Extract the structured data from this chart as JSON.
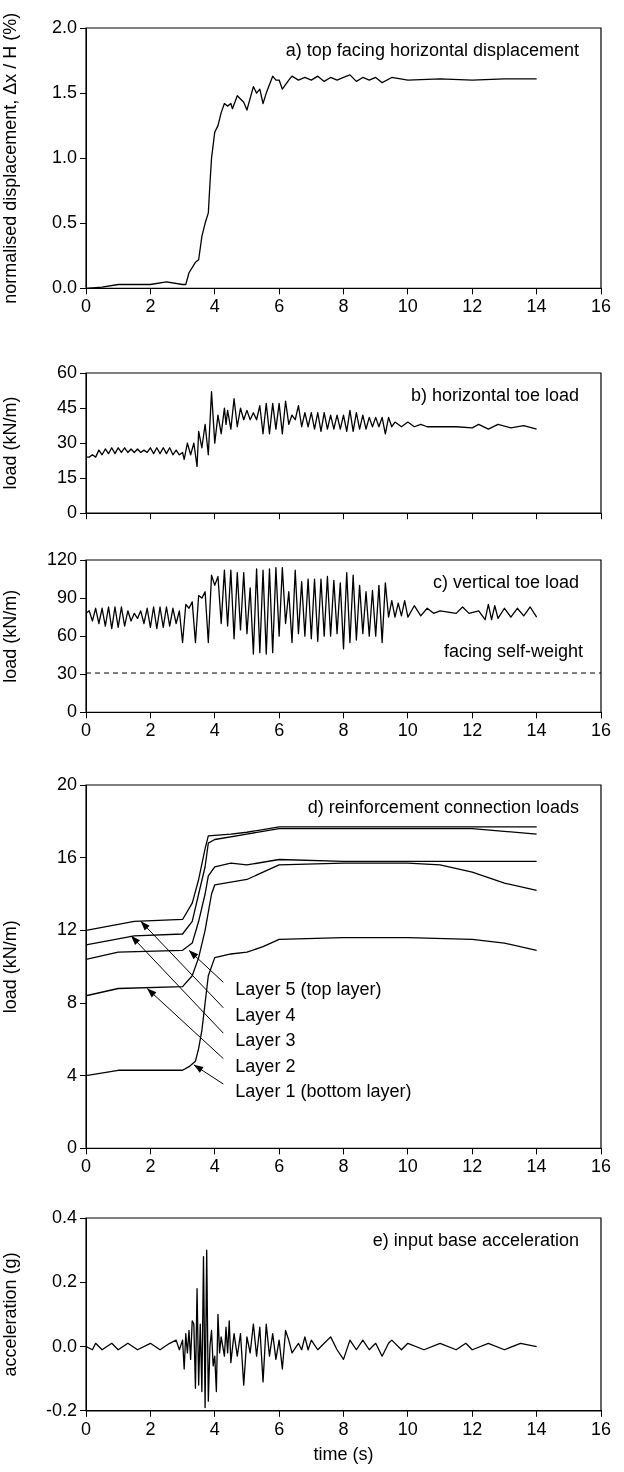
{
  "chart_data": [
    {
      "type": "line",
      "title": "a) top facing horizontal displacement",
      "ylabel": "normalised displacement, Δx / H (%)",
      "xlim": [
        0,
        16
      ],
      "xticks": [
        0,
        2,
        4,
        6,
        8,
        10,
        12,
        14,
        16
      ],
      "ylim": [
        0,
        2
      ],
      "yticks": [
        {
          "value": 0,
          "label": "0.0"
        },
        {
          "value": 0.5,
          "label": "0.5"
        },
        {
          "value": 1,
          "label": "1.0"
        },
        {
          "value": 1.5,
          "label": "1.5"
        },
        {
          "value": 2,
          "label": "2.0"
        }
      ],
      "legend": false,
      "grid": false,
      "series": [
        {
          "color": "#000000",
          "x": [
            0,
            0.5,
            1,
            1.5,
            2,
            2.5,
            3,
            3.1,
            3.2,
            3.4,
            3.5,
            3.6,
            3.7,
            3.8,
            3.85,
            3.9,
            4,
            4.1,
            4.2,
            4.3,
            4.4,
            4.5,
            4.55,
            4.7,
            4.9,
            5,
            5.2,
            5.3,
            5.4,
            5.5,
            5.6,
            5.8,
            5.9,
            6,
            6.1,
            6.3,
            6.4,
            6.6,
            6.8,
            7,
            7.2,
            7.4,
            7.6,
            7.8,
            8,
            8.2,
            8.4,
            8.6,
            8.8,
            9,
            9.2,
            9.5,
            10,
            11,
            12,
            13,
            14
          ],
          "values": [
            0,
            0.01,
            0.03,
            0.03,
            0.03,
            0.05,
            0.03,
            0.03,
            0.12,
            0.2,
            0.22,
            0.4,
            0.5,
            0.58,
            0.8,
            1,
            1.2,
            1.25,
            1.35,
            1.42,
            1.4,
            1.42,
            1.38,
            1.48,
            1.43,
            1.37,
            1.55,
            1.5,
            1.53,
            1.42,
            1.5,
            1.63,
            1.6,
            1.6,
            1.53,
            1.6,
            1.63,
            1.6,
            1.62,
            1.6,
            1.63,
            1.59,
            1.62,
            1.6,
            1.62,
            1.64,
            1.59,
            1.62,
            1.6,
            1.62,
            1.58,
            1.62,
            1.6,
            1.61,
            1.6,
            1.61,
            1.61
          ]
        }
      ]
    },
    {
      "type": "line",
      "title": "b) horizontal toe load",
      "ylabel": "load (kN/m)",
      "xlim": [
        0,
        16
      ],
      "xticks": [
        0,
        2,
        4,
        6,
        8,
        10,
        12,
        14,
        16
      ],
      "ylim": [
        0,
        60
      ],
      "yticks": [
        0,
        15,
        30,
        45,
        60
      ],
      "tick_labels": "y",
      "legend": false,
      "grid": false,
      "series": [
        {
          "color": "#000000",
          "x": [
            0,
            0.1,
            0.2,
            0.3,
            0.4,
            0.5,
            0.6,
            0.7,
            0.8,
            0.9,
            1,
            1.1,
            1.2,
            1.3,
            1.4,
            1.5,
            1.6,
            1.7,
            1.8,
            1.9,
            2,
            2.1,
            2.2,
            2.3,
            2.4,
            2.5,
            2.6,
            2.7,
            2.8,
            2.9,
            3,
            3.05,
            3.15,
            3.25,
            3.35,
            3.45,
            3.5,
            3.6,
            3.7,
            3.8,
            3.9,
            4,
            4.1,
            4.2,
            4.3,
            4.35,
            4.4,
            4.5,
            4.6,
            4.7,
            4.8,
            4.9,
            5,
            5.1,
            5.2,
            5.3,
            5.4,
            5.5,
            5.6,
            5.7,
            5.8,
            5.9,
            6,
            6.1,
            6.2,
            6.3,
            6.4,
            6.5,
            6.6,
            6.7,
            6.8,
            6.9,
            7,
            7.1,
            7.2,
            7.3,
            7.4,
            7.5,
            7.6,
            7.7,
            7.8,
            7.9,
            8,
            8.1,
            8.2,
            8.3,
            8.4,
            8.5,
            8.6,
            8.7,
            8.8,
            8.9,
            9,
            9.1,
            9.2,
            9.3,
            9.4,
            9.5,
            9.6,
            9.8,
            10,
            10.2,
            10.4,
            10.6,
            11,
            11.5,
            12,
            12.2,
            12.5,
            12.8,
            13.2,
            13.6,
            14
          ],
          "values": [
            24,
            24,
            25,
            24,
            27,
            25,
            27.5,
            25.5,
            28,
            25.5,
            28,
            26,
            28,
            26,
            27.5,
            26,
            27.5,
            26,
            27,
            26,
            28,
            25.5,
            28,
            25.5,
            28,
            25.5,
            28,
            25,
            27,
            25,
            26,
            23,
            30,
            25,
            30,
            20,
            35,
            28,
            38,
            25,
            52,
            30,
            42,
            34,
            45,
            38,
            44,
            36,
            49,
            37,
            45,
            40,
            44,
            40,
            43,
            40,
            46,
            34,
            47,
            34,
            47,
            36,
            47,
            34,
            48,
            38,
            42,
            40,
            46,
            37,
            43,
            37,
            43,
            36,
            43,
            35,
            43,
            36,
            42,
            36,
            42,
            36,
            42,
            35,
            44,
            35,
            43,
            36,
            42,
            36,
            41,
            37,
            41,
            37,
            41,
            34,
            41,
            37,
            39,
            37,
            39,
            37,
            38,
            37,
            37,
            37,
            36.5,
            38,
            36,
            38,
            36.5,
            37.5,
            36
          ]
        }
      ]
    },
    {
      "type": "line",
      "title": "c) vertical toe load",
      "ylabel": "load (kN/m)",
      "xlim": [
        0,
        16
      ],
      "xticks": [
        0,
        2,
        4,
        6,
        8,
        10,
        12,
        14,
        16
      ],
      "ylim": [
        0,
        120
      ],
      "yticks": [
        0,
        30,
        60,
        90,
        120
      ],
      "legend": false,
      "grid": false,
      "ref_lines": [
        {
          "axis": "y",
          "value": 31,
          "label": "facing self-weight",
          "line_style": "dashed",
          "color": "#000000"
        }
      ],
      "series": [
        {
          "color": "#000000",
          "x": [
            0,
            0.1,
            0.2,
            0.3,
            0.4,
            0.5,
            0.6,
            0.7,
            0.8,
            0.9,
            1,
            1.1,
            1.2,
            1.3,
            1.4,
            1.5,
            1.6,
            1.7,
            1.8,
            1.9,
            2,
            2.1,
            2.2,
            2.3,
            2.4,
            2.5,
            2.6,
            2.7,
            2.8,
            2.9,
            3,
            3.1,
            3.2,
            3.3,
            3.4,
            3.5,
            3.6,
            3.7,
            3.8,
            3.9,
            4,
            4.1,
            4.2,
            4.3,
            4.4,
            4.5,
            4.6,
            4.7,
            4.8,
            4.9,
            5,
            5.1,
            5.2,
            5.3,
            5.4,
            5.5,
            5.6,
            5.7,
            5.8,
            5.9,
            6,
            6.1,
            6.2,
            6.3,
            6.4,
            6.5,
            6.6,
            6.7,
            6.8,
            6.9,
            7,
            7.1,
            7.2,
            7.3,
            7.4,
            7.5,
            7.6,
            7.7,
            7.8,
            7.9,
            8,
            8.1,
            8.2,
            8.3,
            8.4,
            8.5,
            8.6,
            8.7,
            8.8,
            8.9,
            9,
            9.1,
            9.2,
            9.3,
            9.4,
            9.5,
            9.6,
            9.7,
            9.8,
            9.9,
            10,
            10.2,
            10.4,
            10.6,
            10.8,
            11,
            11.5,
            11.7,
            11.9,
            12.2,
            12.4,
            12.5,
            12.6,
            12.7,
            12.8,
            13,
            13.2,
            13.4,
            13.6,
            13.8,
            14
          ],
          "values": [
            78,
            80,
            72,
            82,
            70,
            82,
            68,
            83,
            66,
            83,
            67,
            83,
            68,
            80,
            72,
            78,
            74,
            80,
            70,
            82,
            67,
            83,
            66,
            83,
            67,
            83,
            68,
            82,
            70,
            80,
            55,
            85,
            82,
            87,
            55,
            92,
            90,
            95,
            55,
            108,
            100,
            107,
            70,
            112,
            68,
            112,
            58,
            110,
            65,
            110,
            62,
            98,
            46,
            113,
            47,
            112,
            46,
            113,
            47,
            114,
            60,
            114,
            70,
            95,
            55,
            112,
            62,
            103,
            60,
            105,
            58,
            105,
            56,
            105,
            60,
            107,
            60,
            104,
            62,
            102,
            50,
            110,
            55,
            108,
            57,
            100,
            62,
            95,
            60,
            96,
            60,
            100,
            55,
            102,
            75,
            88,
            75,
            86,
            76,
            88,
            75,
            84,
            76,
            82,
            78,
            80,
            78,
            83,
            78,
            80,
            73,
            85,
            73,
            84,
            74,
            82,
            75,
            82,
            76,
            83,
            75
          ]
        }
      ]
    },
    {
      "type": "line",
      "title": "d) reinforcement connection loads",
      "ylabel": "load (kN/m)",
      "xlim": [
        0,
        16
      ],
      "xticks": [
        0,
        2,
        4,
        6,
        8,
        10,
        12,
        14,
        16
      ],
      "ylim": [
        0,
        20
      ],
      "yticks": [
        0,
        4,
        8,
        12,
        16,
        20
      ],
      "legend": false,
      "grid": false,
      "annotations": [
        {
          "text": "Layer 5 (top layer)",
          "x": 3.2,
          "y": 10.9
        },
        {
          "text": "Layer 4",
          "x": 1.7,
          "y": 12.5
        },
        {
          "text": "Layer 3",
          "x": 1.4,
          "y": 11.7
        },
        {
          "text": "Layer 2",
          "x": 1.9,
          "y": 8.8
        },
        {
          "text": "Layer 1 (bottom layer)",
          "x": 3.35,
          "y": 4.6
        }
      ],
      "series": [
        {
          "color": "#000000",
          "x": [
            0,
            1,
            3,
            3.2,
            3.4,
            3.5,
            3.6,
            3.7,
            3.8,
            4,
            4.5,
            5,
            5.5,
            6,
            8,
            10,
            12,
            13,
            14
          ],
          "values": [
            4,
            4.3,
            4.3,
            4.5,
            4.8,
            5.5,
            6.5,
            8,
            9.5,
            10.5,
            10.7,
            10.8,
            11.1,
            11.5,
            11.6,
            11.6,
            11.5,
            11.3,
            10.9
          ]
        },
        {
          "color": "#000000",
          "x": [
            0,
            1,
            3,
            3.3,
            3.5,
            3.7,
            3.8,
            3.9,
            4,
            5,
            5.5,
            6,
            8,
            10,
            11,
            12,
            13,
            14
          ],
          "values": [
            8.4,
            8.8,
            8.9,
            9.5,
            10.5,
            12,
            13,
            14,
            14.5,
            14.8,
            15.2,
            15.6,
            15.7,
            15.7,
            15.6,
            15.2,
            14.6,
            14.2
          ]
        },
        {
          "color": "#000000",
          "x": [
            0,
            1,
            3,
            3.3,
            3.5,
            3.7,
            3.8,
            4,
            4.5,
            5,
            6,
            8,
            14
          ],
          "values": [
            10.4,
            10.8,
            10.9,
            11.3,
            12.5,
            14,
            15,
            15.5,
            15.7,
            15.6,
            15.9,
            15.8,
            15.8
          ]
        },
        {
          "color": "#000000",
          "x": [
            0,
            1.5,
            3,
            3.3,
            3.5,
            3.7,
            3.8,
            4,
            5,
            6,
            8,
            12,
            14
          ],
          "values": [
            11.2,
            11.7,
            11.8,
            12.5,
            14,
            15.5,
            16.8,
            17,
            17.3,
            17.6,
            17.6,
            17.6,
            17.3
          ]
        },
        {
          "color": "#000000",
          "x": [
            0,
            1.5,
            3,
            3.3,
            3.5,
            3.7,
            3.8,
            4.5,
            5,
            6,
            8,
            14
          ],
          "values": [
            12,
            12.5,
            12.6,
            13.5,
            14.8,
            16.5,
            17.2,
            17.3,
            17.4,
            17.7,
            17.7,
            17.7
          ]
        }
      ]
    },
    {
      "type": "line",
      "title": "e) input base acceleration",
      "xlabel": "time (s)",
      "ylabel": "acceleration (g)",
      "xlim": [
        0,
        16
      ],
      "xticks": [
        0,
        2,
        4,
        6,
        8,
        10,
        12,
        14,
        16
      ],
      "ylim": [
        -0.2,
        0.4
      ],
      "yticks": [
        {
          "value": -0.2,
          "label": "-0.2"
        },
        {
          "value": 0,
          "label": "0.0"
        },
        {
          "value": 0.2,
          "label": "0.2"
        },
        {
          "value": 0.4,
          "label": "0.4"
        }
      ],
      "legend": false,
      "grid": false,
      "series": [
        {
          "color": "#000000",
          "x": [
            0,
            0.2,
            0.3,
            0.5,
            0.8,
            1,
            1.3,
            1.6,
            2,
            2.3,
            2.6,
            2.8,
            2.9,
            3,
            3.05,
            3.1,
            3.15,
            3.2,
            3.25,
            3.3,
            3.35,
            3.4,
            3.45,
            3.5,
            3.55,
            3.6,
            3.65,
            3.7,
            3.75,
            3.8,
            3.85,
            3.9,
            3.95,
            4,
            4.05,
            4.1,
            4.15,
            4.2,
            4.3,
            4.35,
            4.4,
            4.45,
            4.5,
            4.6,
            4.7,
            4.8,
            4.9,
            5,
            5.1,
            5.2,
            5.3,
            5.4,
            5.5,
            5.6,
            5.7,
            5.8,
            5.9,
            6,
            6.1,
            6.2,
            6.3,
            6.4,
            6.6,
            6.7,
            6.8,
            6.9,
            7,
            7.2,
            7.4,
            7.6,
            7.8,
            8,
            8.2,
            8.4,
            8.6,
            8.8,
            9,
            9.2,
            9.4,
            9.5,
            9.8,
            10,
            10.5,
            11,
            11.5,
            11.8,
            12,
            12.5,
            13,
            13.5,
            14
          ],
          "values": [
            0,
            -0.01,
            0.01,
            -0.01,
            0.01,
            -0.01,
            0.01,
            -0.01,
            0.01,
            -0.01,
            0.01,
            0.02,
            -0.01,
            0.02,
            -0.07,
            0.04,
            -0.02,
            0.05,
            -0.04,
            0.08,
            0.07,
            -0.13,
            0.18,
            -0.12,
            0.07,
            -0.14,
            0.28,
            -0.19,
            0.3,
            -0.17,
            0,
            0.05,
            -0.06,
            -0.03,
            -0.14,
            0.1,
            -0.02,
            0.03,
            -0.03,
            0.06,
            -0.02,
            0.08,
            -0.05,
            0.04,
            -0.03,
            0.04,
            -0.12,
            0.03,
            -0.02,
            0.07,
            -0.03,
            0.06,
            -0.11,
            0.07,
            -0.03,
            0.04,
            -0.04,
            0.02,
            -0.07,
            0.05,
            0.02,
            -0.02,
            0.01,
            -0.01,
            0.03,
            -0.01,
            0.02,
            -0.01,
            0.01,
            0.03,
            -0.01,
            -0.04,
            0.02,
            -0.01,
            0.02,
            -0.01,
            0.01,
            -0.03,
            0.01,
            0.02,
            -0.01,
            0.01,
            -0.01,
            0.01,
            -0.01,
            0.01,
            -0.01,
            0.01,
            -0.01,
            0.01,
            0
          ]
        }
      ]
    }
  ]
}
